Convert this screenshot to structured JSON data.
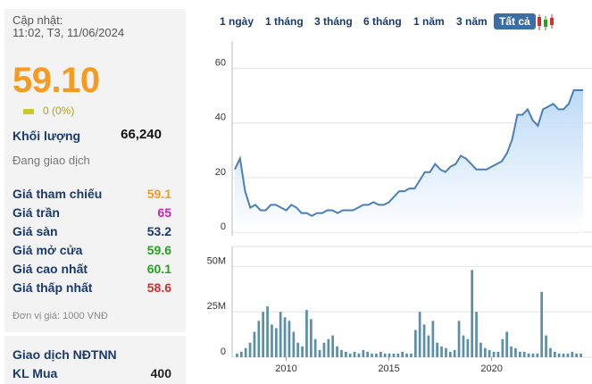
{
  "quote": {
    "update_label": "Cập nhật:",
    "update_time": "11:02, T3, 11/06/2024",
    "price": "59.10",
    "change": "0 (0%)",
    "volume_label": "Khối lượng",
    "volume_value": "66,240",
    "status": "Đang giao dịch",
    "rows": [
      {
        "label": "Giá tham chiếu",
        "value": "59.1",
        "color": "#f79a1e"
      },
      {
        "label": "Giá trần",
        "value": "65",
        "color": "#d020c0"
      },
      {
        "label": "Giá sàn",
        "value": "53.2",
        "color": "#1a3a6b"
      },
      {
        "label": "Giá mở cửa",
        "value": "59.6",
        "color": "#28a020"
      },
      {
        "label": "Giá cao nhất",
        "value": "60.1",
        "color": "#28a020"
      },
      {
        "label": "Giá thấp nhất",
        "value": "58.6",
        "color": "#d03030"
      }
    ],
    "unit_note": "Đơn vị giá: 1000 VNĐ",
    "foreign_title": "Giao dịch NĐTNN",
    "kl_mua_label": "KL Mua",
    "kl_mua_value": "400"
  },
  "tabs": [
    "1 ngày",
    "1 tháng",
    "3 tháng",
    "6 tháng",
    "1 năm",
    "3 năm",
    "Tất cả"
  ],
  "active_tab": "Tất cả",
  "colors": {
    "price_line": "#4a7fb8",
    "price_fill": "#b9d8f5",
    "volume_bar": "#5b8fa8"
  },
  "chart_data": [
    {
      "type": "area",
      "title": "",
      "ylim": [
        0,
        70
      ],
      "y_ticks": [
        "0",
        "20",
        "40",
        "60"
      ],
      "x": [
        2007.5,
        2007.75,
        2008.0,
        2008.25,
        2008.5,
        2008.75,
        2009.0,
        2009.25,
        2009.5,
        2009.75,
        2010.0,
        2010.25,
        2010.5,
        2010.75,
        2011.0,
        2011.25,
        2011.5,
        2011.75,
        2012.0,
        2012.25,
        2012.5,
        2012.75,
        2013.0,
        2013.25,
        2013.5,
        2013.75,
        2014.0,
        2014.25,
        2014.5,
        2014.75,
        2015.0,
        2015.25,
        2015.5,
        2015.75,
        2016.0,
        2016.25,
        2016.5,
        2016.75,
        2017.0,
        2017.25,
        2017.5,
        2017.75,
        2018.0,
        2018.25,
        2018.5,
        2018.75,
        2019.0,
        2019.25,
        2019.5,
        2019.75,
        2020.0,
        2020.25,
        2020.5,
        2020.75,
        2021.0,
        2021.25,
        2021.5,
        2021.75,
        2022.0,
        2022.25,
        2022.5,
        2022.75,
        2023.0,
        2023.25,
        2023.5,
        2023.75,
        2024.0,
        2024.25,
        2024.45
      ],
      "values": [
        23,
        27,
        15,
        9,
        10,
        8,
        8,
        10,
        10,
        9,
        8,
        10,
        9,
        7,
        7,
        6,
        7,
        7,
        8,
        8,
        7,
        8,
        8,
        8,
        9,
        10,
        10,
        11,
        10,
        10,
        11,
        13,
        15,
        15,
        16,
        16,
        19,
        22,
        22,
        25,
        23,
        22,
        24,
        25,
        28,
        27,
        25,
        23,
        23,
        23,
        24,
        25,
        26,
        29,
        34,
        43,
        43,
        45,
        41,
        39,
        45,
        46,
        47,
        45,
        45,
        47,
        52,
        52,
        52
      ],
      "series_name": ""
    },
    {
      "type": "bar",
      "title": "",
      "ylim": [
        0,
        60
      ],
      "y_ticks": [
        "0",
        "25M",
        "50M"
      ],
      "x_ticks": [
        "2010",
        "2015",
        "2020"
      ],
      "x_start": 2007.5,
      "x_end": 2024.45,
      "values": [
        2,
        3,
        5,
        8,
        14,
        20,
        25,
        28,
        18,
        16,
        25,
        22,
        20,
        14,
        8,
        6,
        26,
        21,
        10,
        4,
        8,
        10,
        12,
        6,
        4,
        3,
        2,
        3,
        2,
        4,
        3,
        2,
        2,
        3,
        2,
        2,
        2,
        2,
        3,
        2,
        2,
        15,
        25,
        18,
        12,
        20,
        8,
        6,
        5,
        3,
        4,
        20,
        12,
        10,
        48,
        25,
        8,
        5,
        4,
        3,
        3,
        10,
        14,
        6,
        5,
        3,
        3,
        2,
        2,
        2,
        36,
        12,
        5,
        3,
        2,
        2,
        2,
        3,
        2,
        2
      ]
    }
  ]
}
